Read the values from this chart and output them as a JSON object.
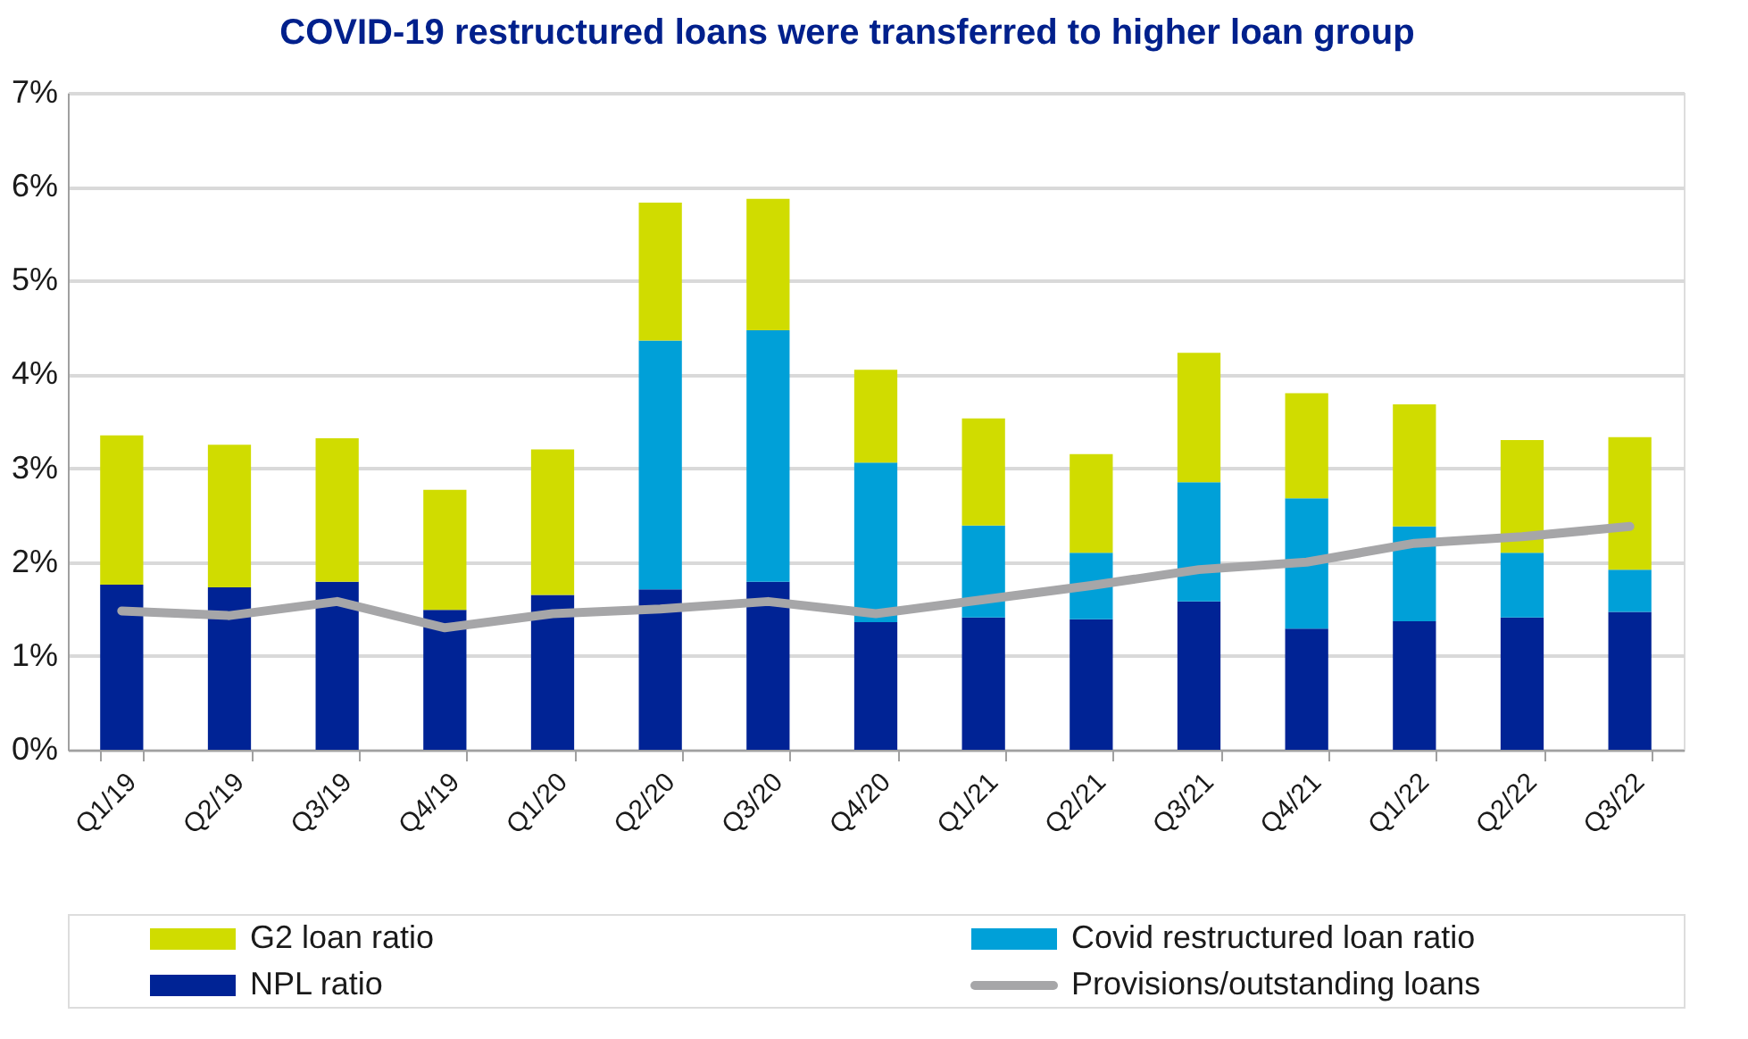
{
  "chart_data": {
    "type": "bar",
    "title": "COVID-19 restructured loans were transferred to higher loan group",
    "categories": [
      "Q1/19",
      "Q2/19",
      "Q3/19",
      "Q4/19",
      "Q1/20",
      "Q2/20",
      "Q3/20",
      "Q4/20",
      "Q1/21",
      "Q2/21",
      "Q3/21",
      "Q4/21",
      "Q1/22",
      "Q2/22",
      "Q3/22"
    ],
    "stacked": true,
    "series": [
      {
        "name": "NPL ratio",
        "color": "#002395",
        "values": [
          1.76,
          1.73,
          1.79,
          1.49,
          1.65,
          1.71,
          1.79,
          1.36,
          1.41,
          1.39,
          1.58,
          1.29,
          1.37,
          1.41,
          1.47
        ]
      },
      {
        "name": "Covid restructured loan ratio",
        "color": "#00a0d8",
        "values": [
          null,
          null,
          null,
          null,
          null,
          2.65,
          2.68,
          1.7,
          0.98,
          0.71,
          1.27,
          1.39,
          1.01,
          0.69,
          0.45
        ]
      },
      {
        "name": "G2 loan ratio",
        "color": "#d0dc00",
        "values": [
          1.59,
          1.52,
          1.53,
          1.28,
          1.55,
          1.47,
          1.4,
          0.99,
          1.14,
          1.05,
          1.38,
          1.12,
          1.3,
          1.2,
          1.41
        ]
      },
      {
        "name": "Provisions/outstanding loans",
        "type": "line",
        "color": "#a6a6a8",
        "values": [
          1.48,
          1.43,
          1.58,
          1.3,
          1.45,
          1.5,
          1.58,
          1.45,
          1.6,
          1.75,
          1.92,
          2.0,
          2.2,
          2.27,
          2.38
        ]
      }
    ],
    "ylim": [
      0,
      7
    ],
    "yticks": [
      {
        "value": 0,
        "label": "0%"
      },
      {
        "value": 1,
        "label": "1%"
      },
      {
        "value": 2,
        "label": "2%"
      },
      {
        "value": 3,
        "label": "3%"
      },
      {
        "value": 4,
        "label": "4%"
      },
      {
        "value": 5,
        "label": "5%"
      },
      {
        "value": 6,
        "label": "6%"
      },
      {
        "value": 7,
        "label": "7%"
      }
    ],
    "grid": "y",
    "legend": "bottom",
    "marker": "none",
    "line_style": "solid"
  }
}
